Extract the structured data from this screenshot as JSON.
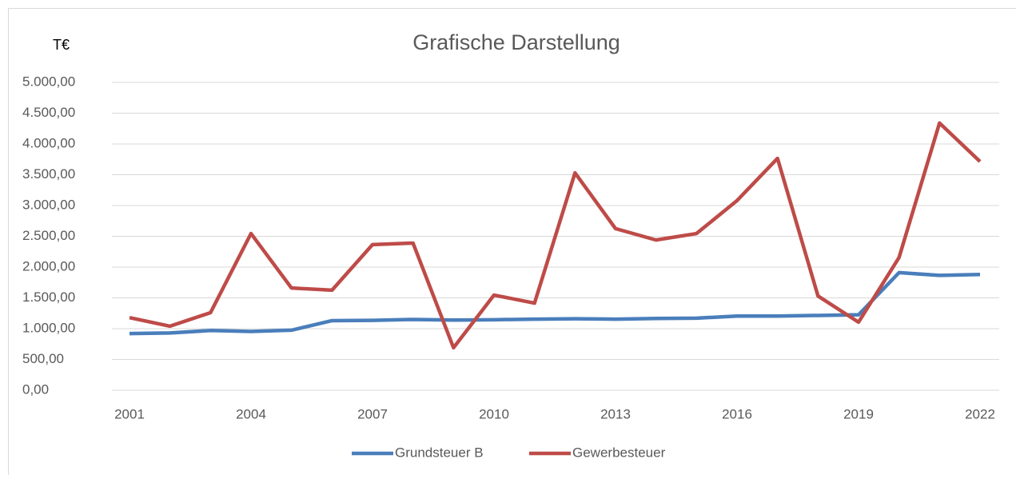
{
  "chart_data": {
    "type": "line",
    "title": "Grafische Darstellung",
    "y_label": "T€",
    "x": [
      2001,
      2002,
      2003,
      2004,
      2005,
      2006,
      2007,
      2008,
      2009,
      2010,
      2011,
      2012,
      2013,
      2014,
      2015,
      2016,
      2017,
      2018,
      2019,
      2020,
      2021,
      2022
    ],
    "series": [
      {
        "name": "Grundsteuer B",
        "color": "#4a7ebb",
        "values": [
          920,
          930,
          970,
          955,
          975,
          1130,
          1135,
          1150,
          1140,
          1145,
          1155,
          1160,
          1155,
          1165,
          1170,
          1205,
          1205,
          1215,
          1225,
          1910,
          1865,
          1880
        ]
      },
      {
        "name": "Gewerbesteuer",
        "color": "#be4b48",
        "values": [
          1180,
          1040,
          1260,
          2545,
          1660,
          1625,
          2365,
          2390,
          690,
          1545,
          1415,
          3530,
          2625,
          2440,
          2545,
          3080,
          3765,
          1530,
          1105,
          2155,
          4340,
          3715
        ]
      }
    ],
    "xlim": [
      2001,
      2022
    ],
    "xticks": [
      2001,
      2004,
      2007,
      2010,
      2013,
      2016,
      2019,
      2022
    ],
    "ylim": [
      0,
      5000
    ],
    "yticks": [
      {
        "value": 0,
        "label": "0,00"
      },
      {
        "value": 500,
        "label": "500,00"
      },
      {
        "value": 1000,
        "label": "1.000,00"
      },
      {
        "value": 1500,
        "label": "1.500,00"
      },
      {
        "value": 2000,
        "label": "2.000,00"
      },
      {
        "value": 2500,
        "label": "2.500,00"
      },
      {
        "value": 3000,
        "label": "3.000,00"
      },
      {
        "value": 3500,
        "label": "3.500,00"
      },
      {
        "value": 4000,
        "label": "4.000,00"
      },
      {
        "value": 4500,
        "label": "4.500,00"
      },
      {
        "value": 5000,
        "label": "5.000,00"
      }
    ],
    "grid": true,
    "legend": "bottom"
  }
}
